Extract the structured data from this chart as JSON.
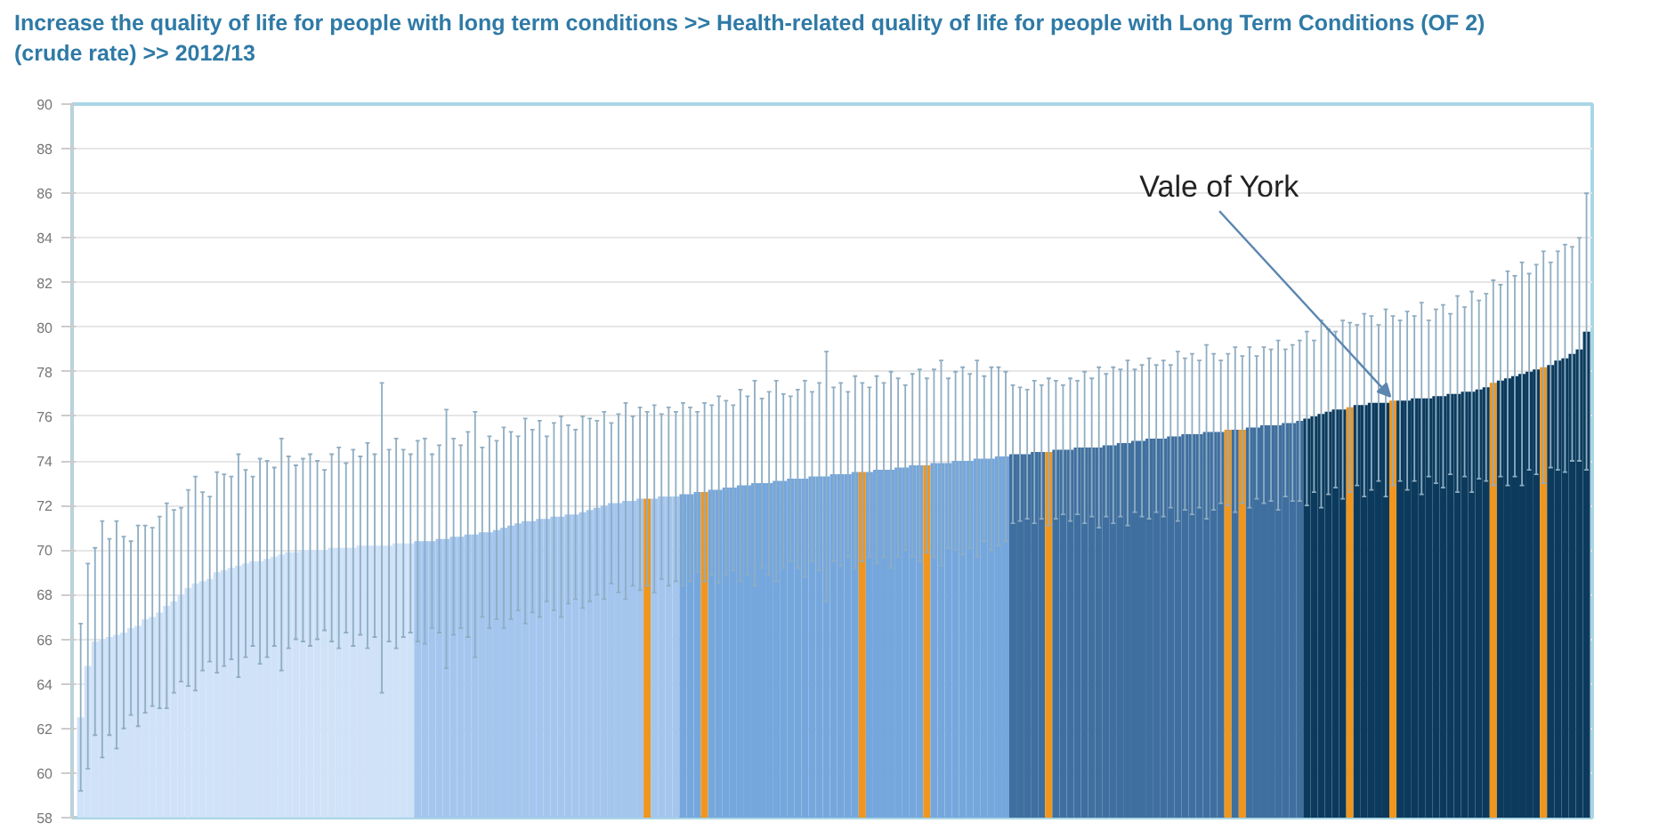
{
  "chart_data": {
    "type": "bar",
    "title": "Increase the quality of life for people with long term conditions >> Health-related quality of life for people with Long Term Conditions (OF 2) (crude rate) >>  2012/13",
    "categories": [
      null,
      null,
      null,
      null,
      null,
      null,
      null,
      null,
      null,
      null,
      null,
      null,
      null,
      null,
      null,
      null,
      null,
      null,
      null,
      null,
      null,
      null,
      null,
      null,
      null,
      null,
      null,
      null,
      null,
      null,
      null,
      null,
      null,
      null,
      null,
      null,
      null,
      null,
      null,
      null,
      null,
      null,
      null,
      null,
      null,
      null,
      null,
      null,
      null,
      null,
      null,
      null,
      null,
      null,
      null,
      null,
      null,
      null,
      null,
      null,
      null,
      null,
      null,
      null,
      null,
      null,
      null,
      null,
      null,
      null,
      null,
      null,
      null,
      null,
      null,
      null,
      null,
      null,
      null,
      null,
      null,
      null,
      null,
      null,
      null,
      null,
      null,
      null,
      null,
      null,
      null,
      null,
      null,
      null,
      null,
      null,
      null,
      null,
      null,
      null,
      null,
      null,
      null,
      null,
      null,
      null,
      null,
      null,
      null,
      null,
      null,
      null,
      null,
      null,
      null,
      null,
      null,
      null,
      null,
      null,
      null,
      null,
      null,
      null,
      null,
      null,
      null,
      null,
      null,
      null,
      null,
      null,
      null,
      null,
      null,
      null,
      null,
      null,
      null,
      null,
      null,
      null,
      null,
      null,
      null,
      null,
      null,
      null,
      null,
      null,
      null,
      null,
      null,
      null,
      null,
      null,
      null,
      null,
      null,
      null,
      null,
      null,
      null,
      null,
      null,
      null,
      null,
      null,
      null,
      null,
      null,
      null,
      null,
      null,
      null,
      null,
      null,
      null,
      null,
      null,
      null,
      null,
      null,
      null,
      null,
      null,
      null,
      null,
      null,
      null,
      null,
      null,
      null,
      null,
      null,
      null,
      null,
      null,
      null,
      null,
      null,
      null,
      null,
      null,
      null,
      null,
      null,
      null,
      null,
      null,
      null
    ],
    "values": [
      62.5,
      64.8,
      65.9,
      66.0,
      66.1,
      66.2,
      66.3,
      66.5,
      66.6,
      66.9,
      67.0,
      67.2,
      67.5,
      67.7,
      68.0,
      68.3,
      68.5,
      68.6,
      68.7,
      69.0,
      69.1,
      69.2,
      69.3,
      69.4,
      69.5,
      69.5,
      69.6,
      69.7,
      69.8,
      69.9,
      69.9,
      70.0,
      70.0,
      70.0,
      70.0,
      70.1,
      70.1,
      70.1,
      70.1,
      70.2,
      70.2,
      70.2,
      70.2,
      70.2,
      70.3,
      70.3,
      70.3,
      70.4,
      70.4,
      70.4,
      70.5,
      70.5,
      70.6,
      70.6,
      70.7,
      70.7,
      70.8,
      70.8,
      70.9,
      71.0,
      71.1,
      71.2,
      71.3,
      71.3,
      71.4,
      71.4,
      71.5,
      71.5,
      71.6,
      71.6,
      71.7,
      71.8,
      71.9,
      72.0,
      72.1,
      72.1,
      72.2,
      72.2,
      72.3,
      72.3,
      72.3,
      72.4,
      72.4,
      72.4,
      72.5,
      72.5,
      72.6,
      72.6,
      72.7,
      72.7,
      72.8,
      72.8,
      72.9,
      72.9,
      73.0,
      73.0,
      73.0,
      73.1,
      73.1,
      73.2,
      73.2,
      73.2,
      73.3,
      73.3,
      73.3,
      73.4,
      73.4,
      73.4,
      73.5,
      73.5,
      73.5,
      73.6,
      73.6,
      73.6,
      73.7,
      73.7,
      73.8,
      73.8,
      73.8,
      73.9,
      73.9,
      73.9,
      74.0,
      74.0,
      74.0,
      74.1,
      74.1,
      74.1,
      74.2,
      74.2,
      74.3,
      74.3,
      74.3,
      74.4,
      74.4,
      74.4,
      74.5,
      74.5,
      74.5,
      74.6,
      74.6,
      74.6,
      74.6,
      74.7,
      74.7,
      74.8,
      74.8,
      74.9,
      74.9,
      75.0,
      75.0,
      75.0,
      75.1,
      75.1,
      75.2,
      75.2,
      75.2,
      75.3,
      75.3,
      75.3,
      75.4,
      75.4,
      75.4,
      75.5,
      75.5,
      75.6,
      75.6,
      75.6,
      75.7,
      75.7,
      75.8,
      75.9,
      76.0,
      76.1,
      76.2,
      76.3,
      76.3,
      76.4,
      76.5,
      76.5,
      76.6,
      76.6,
      76.6,
      76.7,
      76.7,
      76.7,
      76.8,
      76.8,
      76.8,
      76.9,
      76.9,
      77.0,
      77.0,
      77.1,
      77.1,
      77.2,
      77.3,
      77.5,
      77.6,
      77.7,
      77.8,
      77.9,
      78.0,
      78.1,
      78.2,
      78.3,
      78.5,
      78.6,
      78.8,
      79.0,
      79.8
    ],
    "errors": [
      [
        59.2,
        66.7
      ],
      4.6,
      4.2,
      5.3,
      4.4,
      5.1,
      4.3,
      3.9,
      4.5,
      4.2,
      4.0,
      4.3,
      4.6,
      4.1,
      3.9,
      4.4,
      4.8,
      4.0,
      3.7,
      4.5,
      4.3,
      4.1,
      5.0,
      4.2,
      3.8,
      4.6,
      4.4,
      4.0,
      5.2,
      4.3,
      3.9,
      4.1,
      4.3,
      4.0,
      3.6,
      4.2,
      4.5,
      3.8,
      4.4,
      4.0,
      4.6,
      4.1,
      [
        63.6,
        77.5
      ],
      4.3,
      4.7,
      4.2,
      4.0,
      4.5,
      4.6,
      3.9,
      4.2,
      5.8,
      4.4,
      4.1,
      4.6,
      5.5,
      3.8,
      4.3,
      4.0,
      4.5,
      4.2,
      3.9,
      4.6,
      4.1,
      4.4,
      3.7,
      4.2,
      4.5,
      4.0,
      3.8,
      4.3,
      4.1,
      3.9,
      4.2,
      3.6,
      4.0,
      4.4,
      3.8,
      4.1,
      3.9,
      4.2,
      3.7,
      4.0,
      3.8,
      4.1,
      3.9,
      3.6,
      4.0,
      3.8,
      4.2,
      3.9,
      3.7,
      4.3,
      4.0,
      4.6,
      3.8,
      4.1,
      4.5,
      3.9,
      3.7,
      4.0,
      4.4,
      3.8,
      4.2,
      5.6,
      3.9,
      4.1,
      3.7,
      4.3,
      4.0,
      3.8,
      4.2,
      3.9,
      4.4,
      4.0,
      3.7,
      4.1,
      4.3,
      3.9,
      4.2,
      4.6,
      3.8,
      4.0,
      4.2,
      3.9,
      4.4,
      3.7,
      4.1,
      4.0,
      3.8,
      3.1,
      3.0,
      2.9,
      3.2,
      3.0,
      3.3,
      3.1,
      2.9,
      3.2,
      3.0,
      3.4,
      3.1,
      3.6,
      3.2,
      3.5,
      3.3,
      3.7,
      3.2,
      3.4,
      3.6,
      3.3,
      3.5,
      3.2,
      3.8,
      3.4,
      3.6,
      3.3,
      3.9,
      3.5,
      3.2,
      3.4,
      3.7,
      3.3,
      3.6,
      3.2,
      3.5,
      3.4,
      3.8,
      3.3,
      3.5,
      3.6,
      3.9,
      3.4,
      4.2,
      3.7,
      3.5,
      4.0,
      3.8,
      3.6,
      4.1,
      3.9,
      3.5,
      4.2,
      3.8,
      3.6,
      4.0,
      3.7,
      4.3,
      3.5,
      3.9,
      4.1,
      3.6,
      4.4,
      3.8,
      4.5,
      4.0,
      4.2,
      4.6,
      4.3,
      4.8,
      4.5,
      5.0,
      4.4,
      4.7,
      5.2,
      4.6,
      4.9,
      5.1,
      4.8,
      5.0,
      6.2
    ],
    "colors": [
      "#cfe2f8",
      "#cfe2f8",
      "#cfe2f8",
      "#cfe2f8",
      "#cfe2f8",
      "#cfe2f8",
      "#cfe2f8",
      "#cfe2f8",
      "#cfe2f8",
      "#cfe2f8",
      "#cfe2f8",
      "#cfe2f8",
      "#cfe2f8",
      "#cfe2f8",
      "#cfe2f8",
      "#cfe2f8",
      "#cfe2f8",
      "#cfe2f8",
      "#cfe2f8",
      "#cfe2f8",
      "#cfe2f8",
      "#cfe2f8",
      "#cfe2f8",
      "#cfe2f8",
      "#cfe2f8",
      "#cfe2f8",
      "#cfe2f8",
      "#cfe2f8",
      "#cfe2f8",
      "#cfe2f8",
      "#cfe2f8",
      "#cfe2f8",
      "#cfe2f8",
      "#cfe2f8",
      "#cfe2f8",
      "#cfe2f8",
      "#cfe2f8",
      "#cfe2f8",
      "#cfe2f8",
      "#cfe2f8",
      "#cfe2f8",
      "#cfe2f8",
      "#cfe2f8",
      "#cfe2f8",
      "#cfe2f8",
      "#cfe2f8",
      "#cfe2f8",
      "#a4c6ee",
      "#a4c6ee",
      "#a4c6ee",
      "#a4c6ee",
      "#a4c6ee",
      "#a4c6ee",
      "#a4c6ee",
      "#a4c6ee",
      "#a4c6ee",
      "#a4c6ee",
      "#a4c6ee",
      "#a4c6ee",
      "#a4c6ee",
      "#a4c6ee",
      "#a4c6ee",
      "#a4c6ee",
      "#a4c6ee",
      "#a4c6ee",
      "#a4c6ee",
      "#a4c6ee",
      "#a4c6ee",
      "#a4c6ee",
      "#a4c6ee",
      "#a4c6ee",
      "#a4c6ee",
      "#a4c6ee",
      "#a4c6ee",
      "#a4c6ee",
      "#a4c6ee",
      "#a4c6ee",
      "#a4c6ee",
      "#a4c6ee",
      "#f0961e",
      "#a4c6ee",
      "#a4c6ee",
      "#a4c6ee",
      "#a4c6ee",
      "#75a7dd",
      "#75a7dd",
      "#75a7dd",
      "#f0961e",
      "#75a7dd",
      "#75a7dd",
      "#75a7dd",
      "#75a7dd",
      "#75a7dd",
      "#75a7dd",
      "#75a7dd",
      "#75a7dd",
      "#75a7dd",
      "#75a7dd",
      "#75a7dd",
      "#75a7dd",
      "#75a7dd",
      "#75a7dd",
      "#75a7dd",
      "#75a7dd",
      "#75a7dd",
      "#75a7dd",
      "#75a7dd",
      "#75a7dd",
      "#75a7dd",
      "#f0961e",
      "#75a7dd",
      "#75a7dd",
      "#75a7dd",
      "#75a7dd",
      "#75a7dd",
      "#75a7dd",
      "#75a7dd",
      "#75a7dd",
      "#f0961e",
      "#75a7dd",
      "#75a7dd",
      "#75a7dd",
      "#75a7dd",
      "#75a7dd",
      "#75a7dd",
      "#75a7dd",
      "#75a7dd",
      "#75a7dd",
      "#75a7dd",
      "#75a7dd",
      "#3f6f9f",
      "#3f6f9f",
      "#3f6f9f",
      "#3f6f9f",
      "#3f6f9f",
      "#f0961e",
      "#3f6f9f",
      "#3f6f9f",
      "#3f6f9f",
      "#3f6f9f",
      "#3f6f9f",
      "#3f6f9f",
      "#3f6f9f",
      "#3f6f9f",
      "#3f6f9f",
      "#3f6f9f",
      "#3f6f9f",
      "#3f6f9f",
      "#3f6f9f",
      "#3f6f9f",
      "#3f6f9f",
      "#3f6f9f",
      "#3f6f9f",
      "#3f6f9f",
      "#3f6f9f",
      "#3f6f9f",
      "#3f6f9f",
      "#3f6f9f",
      "#3f6f9f",
      "#3f6f9f",
      "#f0961e",
      "#3f6f9f",
      "#f0961e",
      "#3f6f9f",
      "#3f6f9f",
      "#3f6f9f",
      "#3f6f9f",
      "#3f6f9f",
      "#3f6f9f",
      "#3f6f9f",
      "#3f6f9f",
      "#0b3a5c",
      "#0b3a5c",
      "#0b3a5c",
      "#0b3a5c",
      "#0b3a5c",
      "#0b3a5c",
      "#f0961e",
      "#0b3a5c",
      "#0b3a5c",
      "#0b3a5c",
      "#0b3a5c",
      "#0b3a5c",
      "#f0961e",
      "#0b3a5c",
      "#0b3a5c",
      "#0b3a5c",
      "#0b3a5c",
      "#0b3a5c",
      "#0b3a5c",
      "#0b3a5c",
      "#0b3a5c",
      "#0b3a5c",
      "#0b3a5c",
      "#0b3a5c",
      "#0b3a5c",
      "#0b3a5c",
      "#f0961e",
      "#0b3a5c",
      "#0b3a5c",
      "#0b3a5c",
      "#0b3a5c",
      "#0b3a5c",
      "#0b3a5c",
      "#f0961e",
      "#0b3a5c",
      "#0b3a5c",
      "#0b3a5c",
      "#0b3a5c",
      "#0b3a5c",
      "#0b3a5c"
    ],
    "annotations": [
      "Vale of York"
    ],
    "ylim": [
      58,
      90
    ],
    "yticks": [
      58,
      60,
      62,
      64,
      66,
      68,
      70,
      72,
      74,
      76,
      78,
      80,
      82,
      84,
      86,
      88,
      90
    ],
    "grid": "y",
    "tick_labels": "y"
  }
}
